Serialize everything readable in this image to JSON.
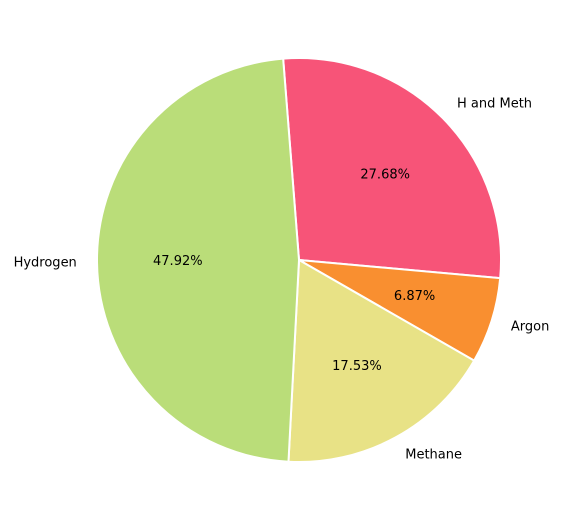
{
  "chart_data": {
    "type": "pie",
    "categories": [
      "H and Meth",
      "Argon",
      "Methane",
      "Hydrogen"
    ],
    "values": [
      27.68,
      6.87,
      17.53,
      47.92
    ],
    "value_labels": [
      "27.68%",
      "6.87%",
      "17.53%",
      "47.92%"
    ],
    "colors": [
      "#f75478",
      "#f98f30",
      "#e8e286",
      "#badd79"
    ]
  }
}
